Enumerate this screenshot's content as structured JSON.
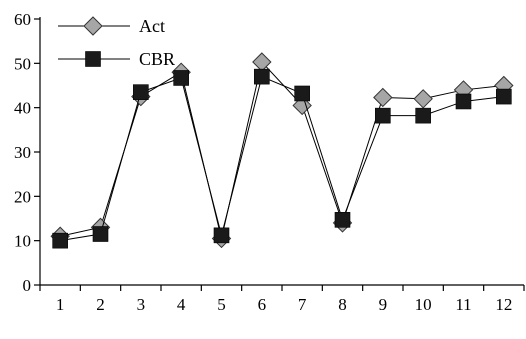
{
  "chart_data": {
    "type": "line",
    "title": "",
    "xlabel": "",
    "ylabel": "",
    "x": [
      1,
      2,
      3,
      4,
      5,
      6,
      7,
      8,
      9,
      10,
      11,
      12
    ],
    "x_tick_labels": [
      "1",
      "2",
      "3",
      "4",
      "5",
      "6",
      "7",
      "8",
      "9",
      "10",
      "11",
      "12"
    ],
    "ylim": [
      0,
      60
    ],
    "y_ticks": [
      0,
      10,
      20,
      30,
      40,
      50,
      60
    ],
    "y_tick_labels": [
      "0",
      "10",
      "20",
      "30",
      "40",
      "50",
      "60"
    ],
    "grid": false,
    "legend_position": "top-left",
    "series": [
      {
        "name": "Act",
        "marker": "diamond",
        "marker_color": "#a6a6a6",
        "values": [
          11,
          13,
          42.5,
          48,
          10.5,
          50.3,
          40.5,
          14,
          42.3,
          42,
          44,
          45
        ]
      },
      {
        "name": "CBR",
        "marker": "square",
        "marker_color": "#1a1a1a",
        "values": [
          10,
          11.5,
          43.5,
          46.7,
          11.2,
          47,
          43.2,
          14.7,
          38.2,
          38.2,
          41.4,
          42.5
        ]
      }
    ]
  }
}
